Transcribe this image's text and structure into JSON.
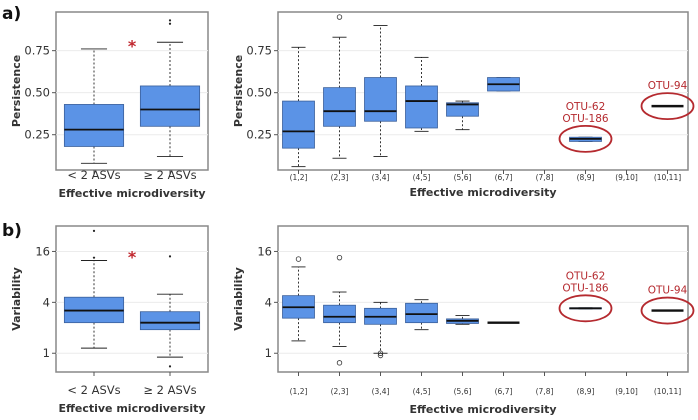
{
  "colors": {
    "box_fill": "#5b93e6",
    "box_stroke": "#3a5f9a",
    "panel_border": "#888888",
    "annotation": "#b52a2f",
    "star": "#c0262d"
  },
  "panel_labels": [
    "a)",
    "b)"
  ],
  "chart_data": [
    {
      "id": "a-left",
      "type": "box",
      "categories": [
        "< 2 ASVs",
        "≥ 2 ASVs"
      ],
      "boxes": [
        {
          "q1": 0.18,
          "median": 0.28,
          "q3": 0.43,
          "whisker_low": 0.08,
          "whisker_high": 0.76,
          "outliers": []
        },
        {
          "q1": 0.3,
          "median": 0.4,
          "q3": 0.54,
          "whisker_low": 0.12,
          "whisker_high": 0.8,
          "outliers": [
            0.91,
            0.93
          ]
        }
      ],
      "xlabel": "Effective microdiversity",
      "ylabel": "Persistence",
      "scale": "linear",
      "ylim": [
        0.04,
        0.98
      ],
      "yticks": [
        0.25,
        0.5,
        0.75
      ],
      "ytick_labels": [
        "0.25",
        "0.50",
        "0.75"
      ],
      "star": "*"
    },
    {
      "id": "a-right",
      "type": "box",
      "categories": [
        "(1,2]",
        "(2,3]",
        "(3,4]",
        "(4,5]",
        "(5,6]",
        "(6,7]",
        "(7,8]",
        "(8,9]",
        "(9,10]",
        "(10,11]"
      ],
      "boxes": [
        {
          "q1": 0.17,
          "median": 0.27,
          "q3": 0.45,
          "whisker_low": 0.06,
          "whisker_high": 0.77,
          "outliers": []
        },
        {
          "q1": 0.3,
          "median": 0.39,
          "q3": 0.53,
          "whisker_low": 0.11,
          "whisker_high": 0.83,
          "outliers": [
            0.95
          ]
        },
        {
          "q1": 0.33,
          "median": 0.39,
          "q3": 0.59,
          "whisker_low": 0.12,
          "whisker_high": 0.9,
          "outliers": []
        },
        {
          "q1": 0.29,
          "median": 0.45,
          "q3": 0.54,
          "whisker_low": 0.27,
          "whisker_high": 0.71,
          "outliers": []
        },
        {
          "q1": 0.36,
          "median": 0.43,
          "q3": 0.44,
          "whisker_low": 0.28,
          "whisker_high": 0.45,
          "outliers": []
        },
        {
          "q1": 0.51,
          "median": 0.55,
          "q3": 0.59,
          "whisker_low": 0.51,
          "whisker_high": 0.59,
          "outliers": []
        },
        null,
        {
          "q1": 0.21,
          "median": 0.225,
          "q3": 0.235,
          "whisker_low": 0.21,
          "whisker_high": 0.235,
          "outliers": []
        },
        null,
        {
          "q1": 0.42,
          "median": 0.42,
          "q3": 0.42,
          "whisker_low": 0.42,
          "whisker_high": 0.42,
          "outliers": []
        }
      ],
      "xlabel": "Effective microdiversity",
      "ylabel": "Persistence",
      "scale": "linear",
      "ylim": [
        0.04,
        0.98
      ],
      "yticks": [
        0.25,
        0.5,
        0.75
      ],
      "ytick_labels": [
        "0.25",
        "0.50",
        "0.75"
      ],
      "annotations": [
        {
          "category_index": 7,
          "lines": [
            "OTU-62",
            "OTU-186"
          ]
        },
        {
          "category_index": 9,
          "lines": [
            "OTU-94"
          ]
        }
      ]
    },
    {
      "id": "b-left",
      "type": "box",
      "categories": [
        "< 2 ASVs",
        "≥ 2 ASVs"
      ],
      "boxes": [
        {
          "q1": 2.3,
          "median": 3.2,
          "q3": 4.6,
          "whisker_low": 1.15,
          "whisker_high": 12.5,
          "outliers": [
            13.5,
            28.0
          ]
        },
        {
          "q1": 1.9,
          "median": 2.3,
          "q3": 3.1,
          "whisker_low": 0.9,
          "whisker_high": 5.0,
          "outliers": [
            0.7,
            14.0
          ]
        }
      ],
      "xlabel": "Effective microdiversity",
      "ylabel": "Variability",
      "scale": "log2",
      "ylim": [
        0.6,
        32
      ],
      "yticks": [
        1,
        4,
        16
      ],
      "ytick_labels": [
        "1",
        "4",
        "16"
      ],
      "star": "*"
    },
    {
      "id": "b-right",
      "type": "box",
      "categories": [
        "(1,2]",
        "(2,3]",
        "(3,4]",
        "(4,5]",
        "(5,6]",
        "(6,7]",
        "(7,8]",
        "(8,9]",
        "(9,10]",
        "(10,11]"
      ],
      "boxes": [
        {
          "q1": 2.6,
          "median": 3.5,
          "q3": 4.8,
          "whisker_low": 1.4,
          "whisker_high": 10.5,
          "outliers": [
            13.0
          ]
        },
        {
          "q1": 2.3,
          "median": 2.7,
          "q3": 3.7,
          "whisker_low": 1.2,
          "whisker_high": 5.3,
          "outliers": [
            0.77,
            13.5
          ]
        },
        {
          "q1": 2.2,
          "median": 2.7,
          "q3": 3.4,
          "whisker_low": 1.0,
          "whisker_high": 4.0,
          "outliers": [
            0.94,
            1.0
          ]
        },
        {
          "q1": 2.3,
          "median": 2.9,
          "q3": 3.9,
          "whisker_low": 1.9,
          "whisker_high": 4.3,
          "outliers": []
        },
        {
          "q1": 2.25,
          "median": 2.42,
          "q3": 2.55,
          "whisker_low": 2.2,
          "whisker_high": 2.8,
          "outliers": []
        },
        {
          "q1": 2.3,
          "median": 2.3,
          "q3": 2.3,
          "whisker_low": 2.3,
          "whisker_high": 2.3,
          "outliers": []
        },
        null,
        {
          "q1": 3.35,
          "median": 3.4,
          "q3": 3.45,
          "whisker_low": 3.35,
          "whisker_high": 3.45,
          "outliers": []
        },
        null,
        {
          "q1": 3.2,
          "median": 3.2,
          "q3": 3.2,
          "whisker_low": 3.2,
          "whisker_high": 3.2,
          "outliers": []
        }
      ],
      "xlabel": "Effective microdiversity",
      "ylabel": "Variability",
      "scale": "log2",
      "ylim": [
        0.6,
        32
      ],
      "yticks": [
        1,
        4,
        16
      ],
      "ytick_labels": [
        "1",
        "4",
        "16"
      ],
      "annotations": [
        {
          "category_index": 7,
          "lines": [
            "OTU-62",
            "OTU-186"
          ]
        },
        {
          "category_index": 9,
          "lines": [
            "OTU-94"
          ]
        }
      ]
    }
  ]
}
